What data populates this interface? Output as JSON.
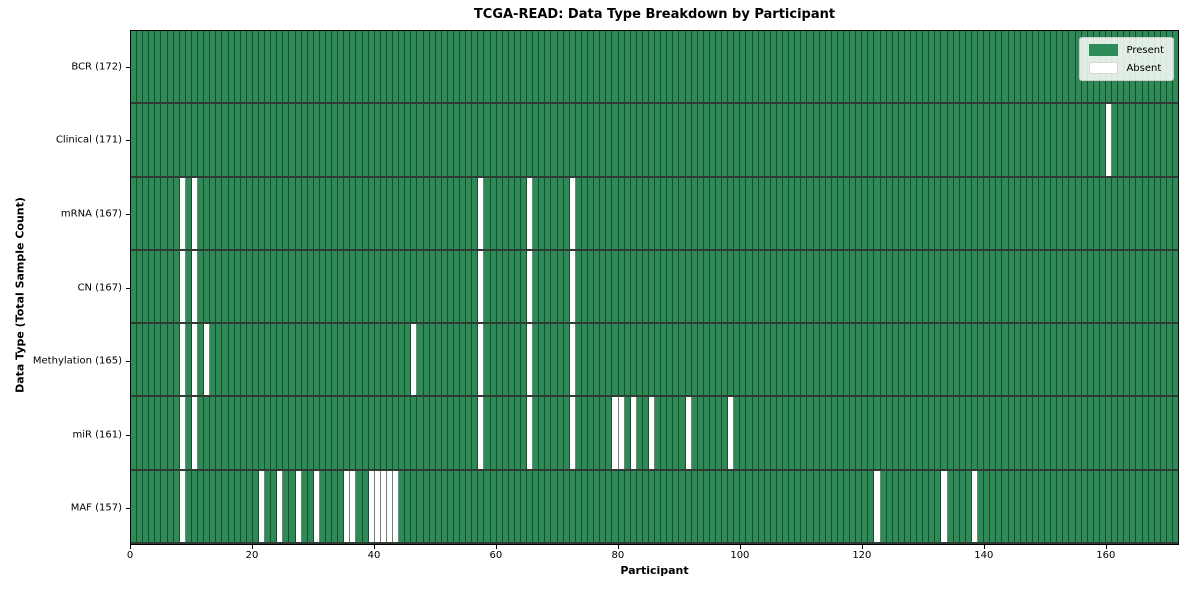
{
  "chart_data": {
    "type": "heatmap",
    "title": "TCGA-READ: Data Type Breakdown by Participant",
    "xlabel": "Participant",
    "ylabel": "Data Type (Total Sample Count)",
    "total_participants": 172,
    "x_ticks": [
      0,
      20,
      40,
      60,
      80,
      100,
      120,
      140,
      160
    ],
    "x_range": [
      0,
      172
    ],
    "grid": false,
    "legend": {
      "position": "upper right",
      "present_label": "Present",
      "absent_label": "Absent"
    },
    "colors": {
      "present": "#2e8b57",
      "absent": "#ffffff"
    },
    "rows": [
      {
        "label": "BCR (172)",
        "data_type": "BCR",
        "sample_count": 172,
        "absent_participants": []
      },
      {
        "label": "Clinical (171)",
        "data_type": "Clinical",
        "sample_count": 171,
        "absent_participants": [
          160
        ]
      },
      {
        "label": "mRNA (167)",
        "data_type": "mRNA",
        "sample_count": 167,
        "absent_participants": [
          8,
          10,
          57,
          65,
          72
        ]
      },
      {
        "label": "CN (167)",
        "data_type": "CN",
        "sample_count": 167,
        "absent_participants": [
          8,
          10,
          57,
          65,
          72
        ]
      },
      {
        "label": "Methylation (165)",
        "data_type": "Methylation",
        "sample_count": 165,
        "absent_participants": [
          8,
          10,
          12,
          46,
          57,
          65,
          72
        ]
      },
      {
        "label": "miR (161)",
        "data_type": "miR",
        "sample_count": 161,
        "absent_participants": [
          8,
          10,
          57,
          65,
          72,
          79,
          80,
          82,
          85,
          91,
          98
        ]
      },
      {
        "label": "MAF (157)",
        "data_type": "MAF",
        "sample_count": 157,
        "absent_participants": [
          8,
          21,
          24,
          27,
          30,
          35,
          36,
          39,
          40,
          41,
          42,
          43,
          122,
          133,
          138
        ]
      }
    ]
  }
}
